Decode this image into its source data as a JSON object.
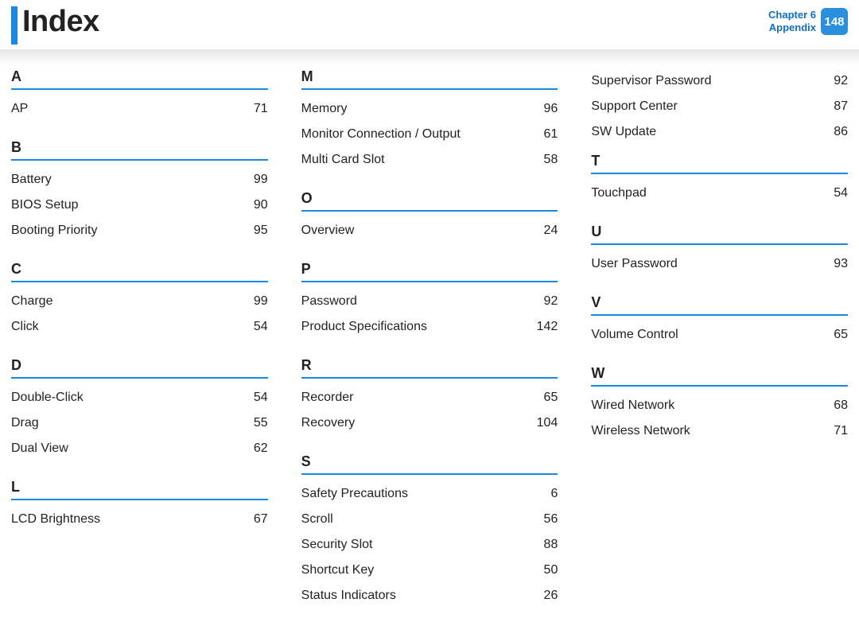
{
  "header": {
    "title": "Index",
    "chapter_label": "Chapter 6",
    "appendix_label": "Appendix",
    "page_number": "148"
  },
  "colors": {
    "accent": "#1a88e0",
    "badge_bg": "#2a8fdc",
    "header_text": "#0f6fc2",
    "text": "#222222",
    "background": "#ffffff"
  },
  "fonts": {
    "title_size_pt": 38,
    "letter_size_pt": 18,
    "entry_size_pt": 16,
    "header_label_size_pt": 13
  },
  "columns": [
    [
      {
        "letter": "A",
        "entries": [
          {
            "term": "AP",
            "page": "71"
          }
        ]
      },
      {
        "letter": "B",
        "entries": [
          {
            "term": "Battery",
            "page": "99"
          },
          {
            "term": "BIOS Setup",
            "page": "90"
          },
          {
            "term": "Booting Priority",
            "page": "95"
          }
        ]
      },
      {
        "letter": "C",
        "entries": [
          {
            "term": "Charge",
            "page": "99"
          },
          {
            "term": "Click",
            "page": "54"
          }
        ]
      },
      {
        "letter": "D",
        "entries": [
          {
            "term": "Double-Click",
            "page": "54"
          },
          {
            "term": "Drag",
            "page": "55"
          },
          {
            "term": "Dual View",
            "page": "62"
          }
        ]
      },
      {
        "letter": "L",
        "entries": [
          {
            "term": "LCD Brightness",
            "page": "67"
          }
        ]
      }
    ],
    [
      {
        "letter": "M",
        "entries": [
          {
            "term": "Memory",
            "page": "96"
          },
          {
            "term": "Monitor Connection / Output",
            "page": "61"
          },
          {
            "term": "Multi Card Slot",
            "page": "58"
          }
        ]
      },
      {
        "letter": "O",
        "entries": [
          {
            "term": "Overview",
            "page": "24"
          }
        ]
      },
      {
        "letter": "P",
        "entries": [
          {
            "term": "Password",
            "page": "92"
          },
          {
            "term": "Product Specifications",
            "page": "142"
          }
        ]
      },
      {
        "letter": "R",
        "entries": [
          {
            "term": "Recorder",
            "page": "65"
          },
          {
            "term": "Recovery",
            "page": "104"
          }
        ]
      },
      {
        "letter": "S",
        "entries": [
          {
            "term": "Safety Precautions",
            "page": "6"
          },
          {
            "term": "Scroll",
            "page": "56"
          },
          {
            "term": "Security Slot",
            "page": "88"
          },
          {
            "term": "Shortcut Key",
            "page": "50"
          },
          {
            "term": "Status Indicators",
            "page": "26"
          }
        ]
      }
    ],
    [
      {
        "letter": null,
        "entries": [
          {
            "term": "Supervisor Password",
            "page": "92"
          },
          {
            "term": "Support Center",
            "page": "87"
          },
          {
            "term": "SW Update",
            "page": "86"
          }
        ]
      },
      {
        "letter": "T",
        "entries": [
          {
            "term": "Touchpad",
            "page": "54"
          }
        ]
      },
      {
        "letter": "U",
        "entries": [
          {
            "term": "User Password",
            "page": "93"
          }
        ]
      },
      {
        "letter": "V",
        "entries": [
          {
            "term": "Volume Control",
            "page": "65"
          }
        ]
      },
      {
        "letter": "W",
        "entries": [
          {
            "term": "Wired Network",
            "page": "68"
          },
          {
            "term": "Wireless Network",
            "page": "71"
          }
        ]
      }
    ]
  ]
}
